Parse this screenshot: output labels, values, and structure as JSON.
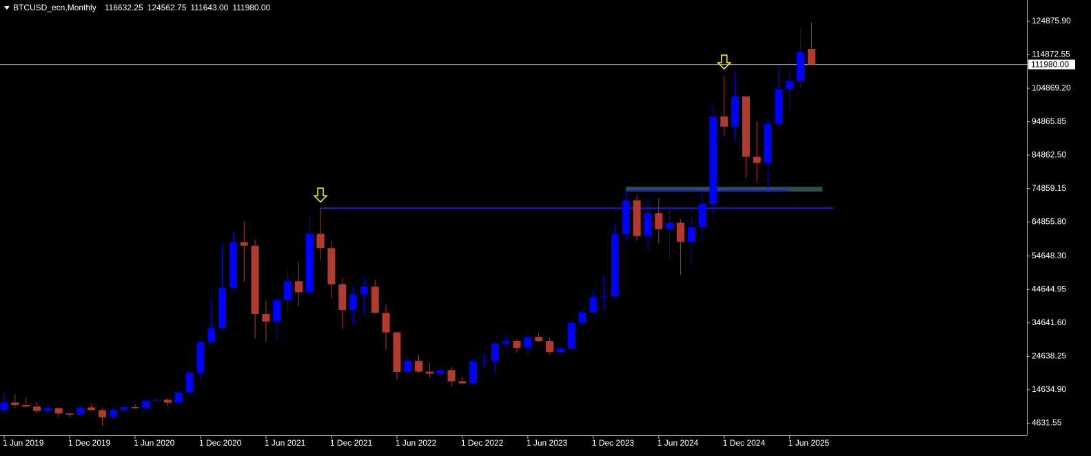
{
  "chart_data": {
    "type": "candlestick",
    "title": "BTCUSD_ecn,Monthly",
    "header_values": [
      116632.25,
      124562.75,
      {
        "value": 111643,
        "label": "111643.00"
      },
      {
        "value": 111980,
        "label": "111980.00"
      }
    ],
    "x": [
      "2019-06",
      "2019-07",
      "2019-08",
      "2019-09",
      "2019-10",
      "2019-11",
      "2019-12",
      "2020-01",
      "2020-02",
      "2020-03",
      "2020-04",
      "2020-05",
      "2020-06",
      "2020-07",
      "2020-08",
      "2020-09",
      "2020-10",
      "2020-11",
      "2020-12",
      "2021-01",
      "2021-02",
      "2021-03",
      "2021-04",
      "2021-05",
      "2021-06",
      "2021-07",
      "2021-08",
      "2021-09",
      "2021-10",
      "2021-11",
      "2021-12",
      "2022-01",
      "2022-02",
      "2022-03",
      "2022-04",
      "2022-05",
      "2022-06",
      "2022-07",
      "2022-08",
      "2022-09",
      "2022-10",
      "2022-11",
      "2022-12",
      "2023-01",
      "2023-02",
      "2023-03",
      "2023-04",
      "2023-05",
      "2023-06",
      "2023-07",
      "2023-08",
      "2023-09",
      "2023-10",
      "2023-11",
      "2023-12",
      "2024-01",
      "2024-02",
      "2024-03",
      "2024-04",
      "2024-05",
      "2024-06",
      "2024-07",
      "2024-08",
      "2024-09",
      "2024-10",
      "2024-11",
      "2024-12",
      "2025-01",
      "2025-02",
      "2025-03",
      "2025-04",
      "2025-05",
      "2025-06",
      "2025-07",
      "2025-08"
    ],
    "open": [
      8550,
      10820,
      10080,
      9600,
      8300,
      9150,
      7550,
      7190,
      9350,
      8540,
      6420,
      8630,
      9450,
      9140,
      11340,
      11650,
      10780,
      13800,
      19700,
      28950,
      33100,
      45200,
      58800,
      57750,
      37300,
      35050,
      41460,
      47100,
      43800,
      61300,
      57000,
      46200,
      38500,
      43200,
      45500,
      37650,
      31800,
      19950,
      23300,
      20050,
      19430,
      20500,
      17170,
      16550,
      23130,
      23150,
      28470,
      29250,
      27200,
      30480,
      29230,
      25940,
      26970,
      34650,
      37700,
      42300,
      42580,
      61180,
      71300,
      60650,
      67500,
      62700,
      64600,
      58950,
      63300,
      70200,
      96400,
      93400,
      102400,
      84350,
      82500,
      94200,
      104600,
      107100,
      116632.25
    ],
    "high": [
      13880,
      13200,
      12330,
      10950,
      10370,
      9510,
      7750,
      9580,
      10500,
      9180,
      9460,
      10080,
      10380,
      11430,
      12470,
      12080,
      14100,
      19880,
      29300,
      41950,
      58350,
      61780,
      64850,
      59600,
      41300,
      42400,
      50500,
      52900,
      67000,
      69000,
      59100,
      47900,
      45800,
      48200,
      47450,
      40000,
      31950,
      24650,
      25200,
      22700,
      21080,
      21450,
      18400,
      23950,
      25250,
      29200,
      31000,
      29800,
      31400,
      31800,
      30200,
      27500,
      35200,
      38450,
      44700,
      48950,
      64000,
      73800,
      72800,
      71950,
      71950,
      70000,
      65600,
      66500,
      73600,
      99800,
      108350,
      109600,
      102500,
      95000,
      95750,
      111900,
      110500,
      123200,
      124562.75
    ],
    "low": [
      7450,
      9100,
      9360,
      7710,
      7300,
      6530,
      6430,
      6870,
      8500,
      3850,
      6150,
      8110,
      8900,
      8970,
      10990,
      9820,
      10400,
      13200,
      17600,
      28150,
      32300,
      44950,
      47050,
      30000,
      28800,
      29300,
      37400,
      39600,
      43300,
      53250,
      42000,
      32900,
      34300,
      37200,
      37700,
      26700,
      17600,
      18800,
      19600,
      18150,
      18200,
      15500,
      16300,
      16500,
      21400,
      19550,
      26950,
      25800,
      24800,
      28850,
      25300,
      24900,
      26550,
      34100,
      37600,
      38550,
      41880,
      59300,
      59200,
      56500,
      58400,
      53500,
      49000,
      52550,
      58900,
      66800,
      90500,
      89200,
      78200,
      76600,
      74600,
      93300,
      98200,
      105300,
      111643
    ],
    "close": [
      10820,
      10080,
      9600,
      8300,
      9150,
      7550,
      7190,
      9350,
      8540,
      6420,
      8630,
      9450,
      9140,
      11340,
      11650,
      10780,
      13800,
      19700,
      28950,
      33100,
      45200,
      58800,
      57750,
      37300,
      35050,
      41460,
      47100,
      43800,
      61300,
      57000,
      46200,
      38500,
      43200,
      45500,
      37650,
      31800,
      19950,
      23300,
      20050,
      19430,
      20500,
      17170,
      16550,
      23130,
      23150,
      28470,
      29250,
      27200,
      30480,
      29230,
      25940,
      26970,
      34650,
      37700,
      42300,
      42580,
      61180,
      71300,
      60650,
      67500,
      62700,
      64600,
      58950,
      63300,
      70200,
      96400,
      93400,
      102400,
      84350,
      82500,
      94200,
      104600,
      107100,
      115700,
      111980
    ],
    "up_color": "#0000ff",
    "down_color": "#b23a2e",
    "ylim": [
      1000,
      131270
    ],
    "yticks": [
      {
        "value": 124875.9,
        "label": "124875.90"
      },
      114872.55,
      {
        "value": 104869.2,
        "label": "104869.20"
      },
      94865.85,
      {
        "value": 84862.5,
        "label": "84862.50"
      },
      74859.15,
      {
        "value": 64855.8,
        "label": "64855.80"
      },
      {
        "value": 54648.3,
        "label": "54648.30"
      },
      44644.95,
      {
        "value": 34641.6,
        "label": "34641.60"
      },
      24638.25,
      {
        "value": 14634.9,
        "label": "14634.90"
      },
      4631.55
    ],
    "xticks": [
      {
        "value": "2019-06",
        "label": "1 Jun 2019"
      },
      {
        "value": "2019-12",
        "label": "1 Dec 2019"
      },
      {
        "value": "2020-06",
        "label": "1 Jun 2020"
      },
      {
        "value": "2020-12",
        "label": "1 Dec 2020"
      },
      {
        "value": "2021-06",
        "label": "1 Jun 2021"
      },
      {
        "value": "2021-12",
        "label": "1 Dec 2021"
      },
      {
        "value": "2022-06",
        "label": "1 Jun 2022"
      },
      {
        "value": "2022-12",
        "label": "1 Dec 2022"
      },
      {
        "value": "2023-06",
        "label": "1 Jun 2023"
      },
      {
        "value": "2023-12",
        "label": "1 Dec 2023"
      },
      {
        "value": "2024-06",
        "label": "1 Jun 2024"
      },
      {
        "value": "2024-12",
        "label": "1 Dec 2024"
      },
      {
        "value": "2025-06",
        "label": "1 Jun 2025"
      }
    ],
    "price_line": {
      "value": 111980,
      "label": "111980.00",
      "color": "#9fb6cf"
    },
    "levels": [
      {
        "value": 69000,
        "from": "2021-11",
        "to": "2025-10",
        "color": "#1f1fff"
      },
      {
        "value": 74200,
        "from": "2024-03",
        "to": "2025-06",
        "color": "#1f1fff"
      }
    ],
    "zones": [
      {
        "low": 73930,
        "high": 75374,
        "from": "2024-03",
        "to": "2025-09",
        "color": "#2f4f4f"
      }
    ],
    "arrows": [
      {
        "x": "2021-11",
        "value": 70840,
        "color": "#ffff00"
      },
      {
        "x": "2024-12",
        "value": 110650,
        "color": "#ffff00"
      }
    ]
  }
}
